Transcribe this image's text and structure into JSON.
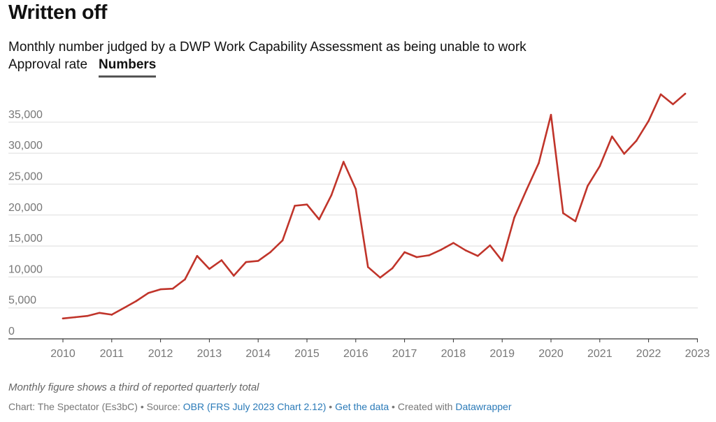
{
  "header": {
    "title": "Written off",
    "subtitle": "Monthly number judged by a DWP Work Capability Assessment as being unable to work"
  },
  "tabs": [
    {
      "label": "Approval rate",
      "active": false
    },
    {
      "label": "Numbers",
      "active": true
    }
  ],
  "notes": "Monthly figure shows a third of reported quarterly total",
  "footer": {
    "chart_prefix": "Chart: The Spectator (Es3bC) • Source: ",
    "source_link": "OBR (FRS July 2023 Chart 2.12)",
    "sep1": " • ",
    "data_link": "Get the data",
    "sep2": " • Created with ",
    "tool_link": "Datawrapper"
  },
  "colors": {
    "line": "#c0342a",
    "grid": "#dddddd",
    "axis": "#333333",
    "tick_label": "#777777",
    "link": "#2a7ab8"
  },
  "chart_data": {
    "type": "line",
    "title": "Written off",
    "xlabel": "",
    "ylabel": "",
    "xlim": [
      2009.5,
      2023
    ],
    "ylim": [
      0,
      40000
    ],
    "x_ticks": [
      2010,
      2011,
      2012,
      2013,
      2014,
      2015,
      2016,
      2017,
      2018,
      2019,
      2020,
      2021,
      2022,
      2023
    ],
    "y_ticks": [
      {
        "value": 0,
        "label": "0"
      },
      {
        "value": 5000,
        "label": "5,000"
      },
      {
        "value": 10000,
        "label": "10,000"
      },
      {
        "value": 15000,
        "label": "15,000"
      },
      {
        "value": 20000,
        "label": "20,000"
      },
      {
        "value": 25000,
        "label": "25,000"
      },
      {
        "value": 30000,
        "label": "30,000"
      },
      {
        "value": 35000,
        "label": "35,000"
      }
    ],
    "series": [
      {
        "name": "Numbers",
        "x": [
          2010.0,
          2010.25,
          2010.5,
          2010.75,
          2011.0,
          2011.25,
          2011.5,
          2011.75,
          2012.0,
          2012.25,
          2012.5,
          2012.75,
          2013.0,
          2013.25,
          2013.5,
          2013.75,
          2014.0,
          2014.25,
          2014.5,
          2014.75,
          2015.0,
          2015.25,
          2015.5,
          2015.75,
          2016.0,
          2016.25,
          2016.5,
          2016.75,
          2017.0,
          2017.25,
          2017.5,
          2017.75,
          2018.0,
          2018.25,
          2018.5,
          2018.75,
          2019.0,
          2019.25,
          2019.5,
          2019.75,
          2020.0,
          2020.25,
          2020.5,
          2020.75,
          2021.0,
          2021.25,
          2021.5,
          2021.75,
          2022.0,
          2022.25,
          2022.5,
          2022.75
        ],
        "values": [
          3300,
          3500,
          3700,
          4200,
          3900,
          5000,
          6100,
          7400,
          8000,
          8100,
          9600,
          13400,
          11300,
          12700,
          10200,
          12400,
          12600,
          14000,
          15900,
          21500,
          21700,
          19300,
          23200,
          28600,
          24200,
          11600,
          9900,
          11400,
          14000,
          13200,
          13500,
          14400,
          15500,
          14300,
          13400,
          15100,
          12600,
          19600,
          24100,
          28400,
          36200,
          20300,
          19000,
          24700,
          27900,
          32700,
          29900,
          32000,
          35200,
          39500,
          37900,
          39600
        ]
      }
    ]
  }
}
